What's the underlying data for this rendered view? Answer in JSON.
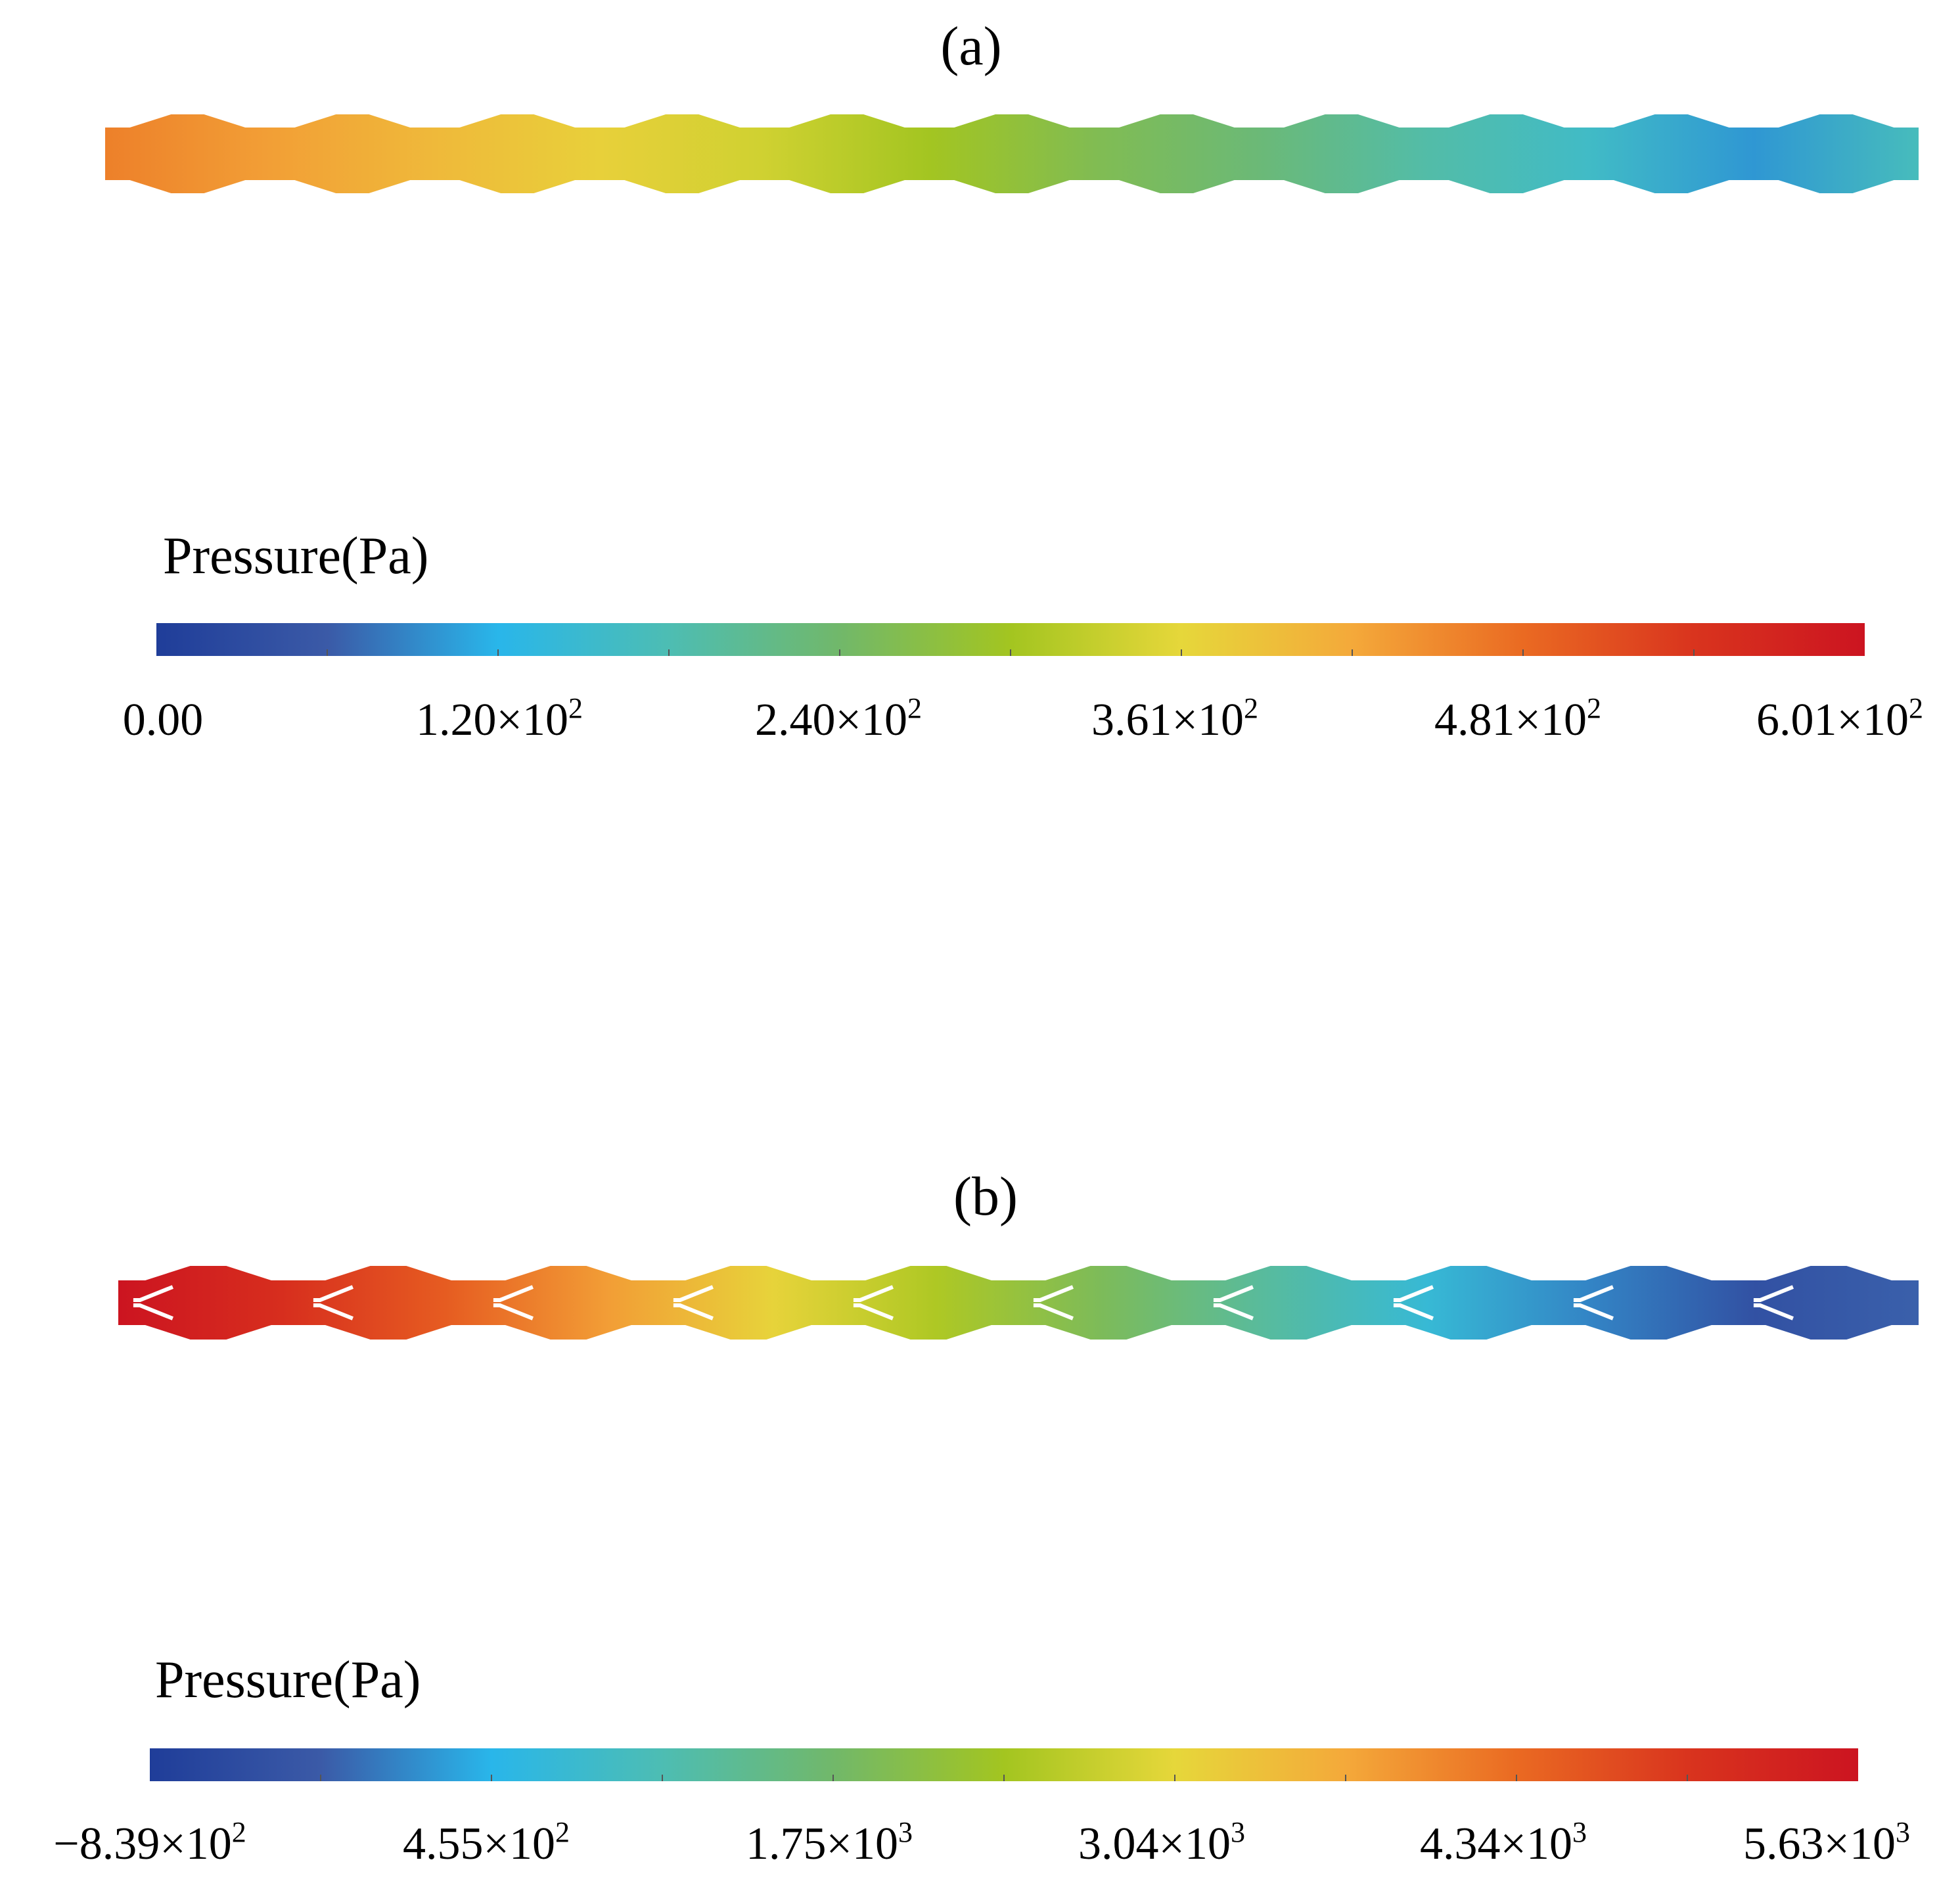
{
  "panels": [
    {
      "id": "a",
      "label": "(a)",
      "colorbar": {
        "title": "Pressure(Pa)",
        "min": 0,
        "max": 601,
        "ticks": [
          {
            "base": "0.00",
            "exp": ""
          },
          {
            "base": "1.20×10",
            "exp": "2"
          },
          {
            "base": "2.40×10",
            "exp": "2"
          },
          {
            "base": "3.61×10",
            "exp": "2"
          },
          {
            "base": "4.81×10",
            "exp": "2"
          },
          {
            "base": "6.01×10",
            "exp": "2"
          }
        ]
      },
      "channel": {
        "units": 11,
        "with_baffles": false,
        "unit_values": [
          460,
          430,
          400,
          370,
          340,
          300,
          260,
          230,
          190,
          160,
          100,
          170
        ]
      }
    },
    {
      "id": "b",
      "label": "(b)",
      "colorbar": {
        "title": "Pressure(Pa)",
        "min": -839,
        "max": 5630,
        "ticks": [
          {
            "base": "−8.39×10",
            "exp": "2"
          },
          {
            "base": "4.55×10",
            "exp": "2"
          },
          {
            "base": "1.75×10",
            "exp": "3"
          },
          {
            "base": "3.04×10",
            "exp": "3"
          },
          {
            "base": "4.34×10",
            "exp": "3"
          },
          {
            "base": "5.63×10",
            "exp": "3"
          }
        ]
      },
      "channel": {
        "units": 10,
        "with_baffles": true,
        "unit_values": [
          5630,
          5100,
          4500,
          3800,
          3100,
          2500,
          1900,
          1300,
          700,
          100,
          -400,
          -150
        ]
      }
    }
  ],
  "colormap": [
    "#1f3d99",
    "#3b5aa7",
    "#29b6ea",
    "#4dbdb3",
    "#71b86a",
    "#a3c520",
    "#e6d73a",
    "#f4a93a",
    "#ea6a22",
    "#d9341e",
    "#cc1420"
  ]
}
